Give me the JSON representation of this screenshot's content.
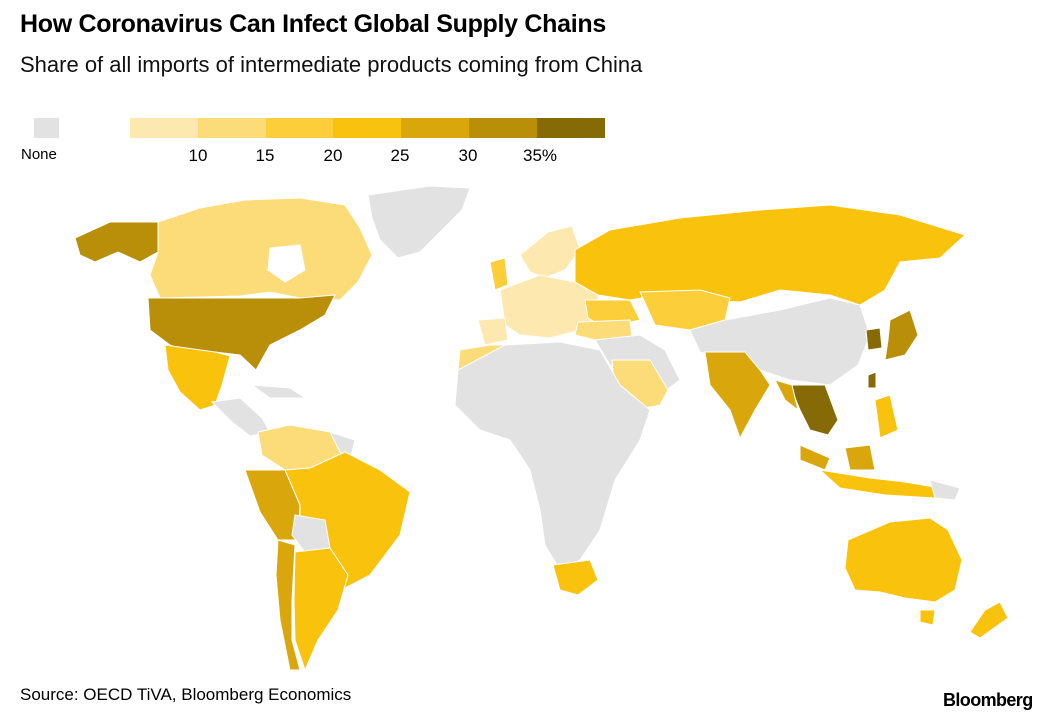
{
  "title": "How Coronavirus Can Infect Global Supply Chains",
  "subtitle": "Share of all imports of intermediate products coming from China",
  "legend": {
    "none_label": "None",
    "none_color": "#e2e2e2",
    "bins": [
      {
        "color": "#fde9b0"
      },
      {
        "color": "#fcdc78"
      },
      {
        "color": "#fbce3a"
      },
      {
        "color": "#f8c20d"
      },
      {
        "color": "#d9a70b"
      },
      {
        "color": "#b98e09"
      },
      {
        "color": "#866a06"
      }
    ],
    "ticks": [
      "10",
      "15",
      "20",
      "25",
      "30",
      "35%"
    ]
  },
  "map": {
    "colors": {
      "none": "#e2e2e2",
      "b5": "#fde9b0",
      "b10": "#fcdc78",
      "b15": "#fbce3a",
      "b20": "#f8c20d",
      "b25": "#d9a70b",
      "b30": "#b98e09",
      "b35": "#866a06"
    }
  },
  "source": "Source: OECD TiVA, Bloomberg Economics",
  "brand": "Bloomberg"
}
